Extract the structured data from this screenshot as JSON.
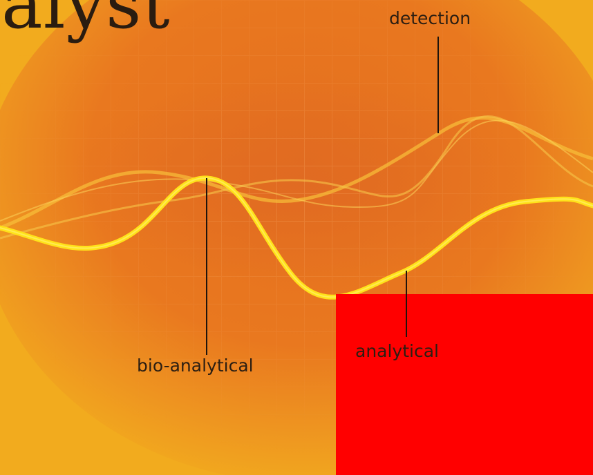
{
  "title_fragment": "alyst",
  "labels": {
    "detection": "detection",
    "bio_analytical": "bio-analytical",
    "analytical": "analytical"
  },
  "colors": {
    "background": "#f2ab1e",
    "glow": "#e8721e",
    "wave_bright": "#ffe21a",
    "wave_soft": "#f7c335",
    "red_block": "#ff0000",
    "text": "#2b1e12"
  }
}
